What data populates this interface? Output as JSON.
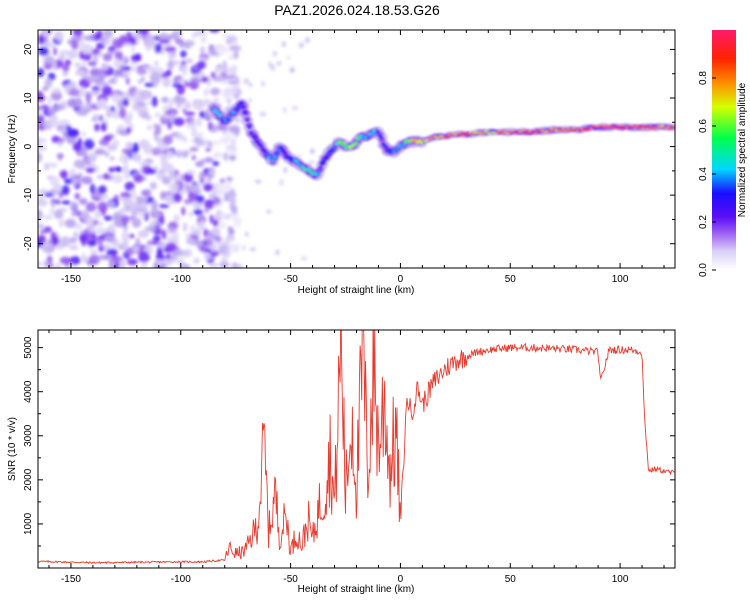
{
  "page_title": "PAZ1.2026.024.18.53.G26",
  "colors": {
    "snr_line": "#e83a2e",
    "axis": "#000000",
    "background": "#ffffff",
    "colormap": [
      "#ffffff",
      "#b9a5ee",
      "#7b2cf2",
      "#1a0dff",
      "#00d7ff",
      "#00ff4c",
      "#d6ff00",
      "#ff8c00",
      "#ff2200",
      "#ff1a6a"
    ]
  },
  "chart_data": [
    {
      "type": "heatmap",
      "title": "",
      "xlabel": "Height of straight line (km)",
      "ylabel": "Frequency (Hz)",
      "xlim": [
        -165,
        125
      ],
      "ylim": [
        -25,
        24
      ],
      "xticks": [
        -150,
        -100,
        -50,
        0,
        50,
        100
      ],
      "yticks": [
        -20,
        -10,
        0,
        10,
        20
      ],
      "colorbar": {
        "label": "Normalized spectral amplitude",
        "range": [
          0,
          1
        ],
        "ticks": [
          0.0,
          0.2,
          0.4,
          0.6,
          0.8
        ]
      },
      "ridge": {
        "x": [
          -85,
          -80,
          -76,
          -72,
          -68,
          -65,
          -62,
          -58,
          -55,
          -52,
          -48,
          -45,
          -42,
          -38,
          -35,
          -32,
          -28,
          -25,
          -22,
          -18,
          -15,
          -12,
          -10,
          -6,
          -3,
          0,
          3,
          6,
          10,
          15,
          20,
          25,
          30,
          40,
          50,
          60,
          70,
          80,
          90,
          100,
          110,
          120,
          125
        ],
        "y": [
          8,
          5,
          7,
          9,
          3,
          1,
          -1,
          -3,
          0,
          -2,
          -3,
          -4,
          -5,
          -6,
          -3,
          -1,
          1,
          0,
          0,
          2,
          2,
          3,
          3,
          -1,
          -1,
          0,
          1,
          1,
          1,
          2,
          2,
          2.5,
          2.5,
          3,
          3,
          3,
          3.5,
          3.5,
          4,
          4,
          4,
          4,
          4
        ],
        "amplitude": [
          0.45,
          0.4,
          0.4,
          0.35,
          0.3,
          0.3,
          0.35,
          0.45,
          0.35,
          0.3,
          0.4,
          0.45,
          0.5,
          0.45,
          0.3,
          0.35,
          0.55,
          0.6,
          0.65,
          0.5,
          0.4,
          0.45,
          0.3,
          0.35,
          0.4,
          0.4,
          0.6,
          0.7,
          0.75,
          0.75,
          0.8,
          0.85,
          0.85,
          0.7,
          0.85,
          0.9,
          0.8,
          0.85,
          0.9,
          0.95,
          0.9,
          0.8,
          0.8
        ]
      },
      "noise_region": {
        "x_range": [
          -165,
          -80
        ],
        "amplitude_range": [
          0.05,
          0.3
        ]
      }
    },
    {
      "type": "line",
      "title": "",
      "xlabel": "Height of straight line (km)",
      "ylabel": "SNR (10 * v/v)",
      "xlim": [
        -165,
        125
      ],
      "ylim": [
        0,
        5400
      ],
      "xticks": [
        -150,
        -100,
        -50,
        0,
        50,
        100
      ],
      "yticks": [
        1000,
        2000,
        3000,
        4000,
        5000
      ],
      "series": [
        {
          "name": "SNR",
          "x": [
            -165,
            -140,
            -120,
            -100,
            -90,
            -80,
            -78,
            -75,
            -72,
            -70,
            -65,
            -62,
            -60,
            -57,
            -55,
            -52,
            -50,
            -47,
            -45,
            -42,
            -40,
            -37,
            -35,
            -32,
            -30,
            -27,
            -25,
            -22,
            -20,
            -17,
            -15,
            -12,
            -10,
            -7,
            -5,
            -2,
            0,
            3,
            5,
            8,
            10,
            15,
            20,
            25,
            30,
            35,
            40,
            50,
            60,
            70,
            80,
            90,
            91,
            95,
            100,
            105,
            110,
            111,
            113,
            116,
            120,
            125
          ],
          "y": [
            150,
            120,
            130,
            140,
            140,
            180,
            450,
            330,
            350,
            450,
            1000,
            2800,
            800,
            1700,
            700,
            1200,
            400,
            800,
            500,
            1100,
            650,
            1400,
            1600,
            2600,
            1400,
            5200,
            1700,
            3500,
            1800,
            5000,
            2100,
            4700,
            2700,
            3900,
            2200,
            3100,
            1000,
            3900,
            3500,
            4100,
            3700,
            4200,
            4500,
            4700,
            4800,
            4900,
            4950,
            5000,
            5000,
            4980,
            4950,
            4900,
            4200,
            4950,
            4950,
            4950,
            4900,
            3500,
            2200,
            2250,
            2200,
            2150
          ]
        }
      ]
    }
  ]
}
